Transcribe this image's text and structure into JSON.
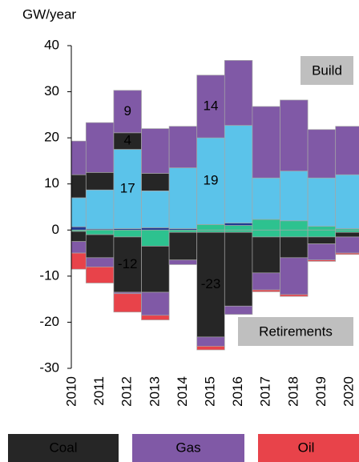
{
  "chart_data": {
    "type": "stacked-bar",
    "y_label": "GW/year",
    "categories": [
      "2010",
      "2011",
      "2012",
      "2013",
      "2014",
      "2015",
      "2016",
      "2017",
      "2018",
      "2019",
      "2020"
    ],
    "ylim": [
      -30,
      40
    ],
    "yticks": [
      -30,
      -20,
      -10,
      0,
      10,
      20,
      30,
      40
    ],
    "annotations": [
      "Build",
      "Retirements"
    ],
    "series": [
      {
        "color": "#2dc28f",
        "values": [
          0,
          0,
          0,
          0,
          0,
          1.2,
          1,
          2.3,
          2,
          0.8,
          0.3
        ]
      },
      {
        "color": "#1f3a93",
        "values": [
          0.7,
          0.2,
          0.3,
          0.5,
          0.3,
          0,
          0.5,
          0,
          0,
          0,
          0
        ]
      },
      {
        "color": "#5bc3ea",
        "values": [
          6.3,
          8.5,
          17.2,
          8,
          13.2,
          18.8,
          21.2,
          9,
          10.8,
          10.5,
          11.7
        ],
        "value_labels": [
          null,
          null,
          "17",
          null,
          null,
          "19",
          null,
          null,
          null,
          null,
          null
        ]
      },
      {
        "color": "#262626",
        "values": [
          5,
          3.8,
          3.6,
          3.8,
          0,
          0,
          0,
          0,
          0,
          0,
          0
        ],
        "value_labels": [
          null,
          null,
          "4",
          null,
          null,
          null,
          null,
          null,
          null,
          null,
          null
        ]
      },
      {
        "color": "#8059a6",
        "values": [
          7.3,
          10.8,
          9.2,
          9.7,
          9,
          13.6,
          14.1,
          15.5,
          15.4,
          10.5,
          10.5
        ],
        "value_labels": [
          null,
          null,
          "9",
          null,
          null,
          "14",
          null,
          null,
          null,
          null,
          null
        ]
      },
      {
        "color": "#2dc28f",
        "values": [
          -0.3,
          -1,
          -1.5,
          -3.5,
          -0.5,
          -0.5,
          -0.5,
          -1.5,
          -1.5,
          -1.5,
          -0.5
        ]
      },
      {
        "name": "Coal",
        "color": "#262626",
        "values": [
          -2.2,
          -5,
          -12,
          -10,
          -6,
          -22.7,
          -16,
          -7.8,
          -4.5,
          -1.5,
          -1
        ],
        "value_labels": [
          null,
          null,
          "-12",
          null,
          null,
          "-23",
          null,
          null,
          null,
          null,
          null
        ]
      },
      {
        "name": "Gas",
        "color": "#8059a6",
        "values": [
          -2.5,
          -2,
          -0.3,
          -5,
          -1,
          -2,
          -1.8,
          -3.7,
          -8,
          -3.5,
          -3.5
        ]
      },
      {
        "name": "Oil",
        "color": "#e8434a",
        "values": [
          -3.5,
          -3.5,
          -4,
          -1,
          0,
          -0.8,
          0,
          -0.4,
          -0.4,
          -0.3,
          -0.3
        ]
      }
    ]
  }
}
